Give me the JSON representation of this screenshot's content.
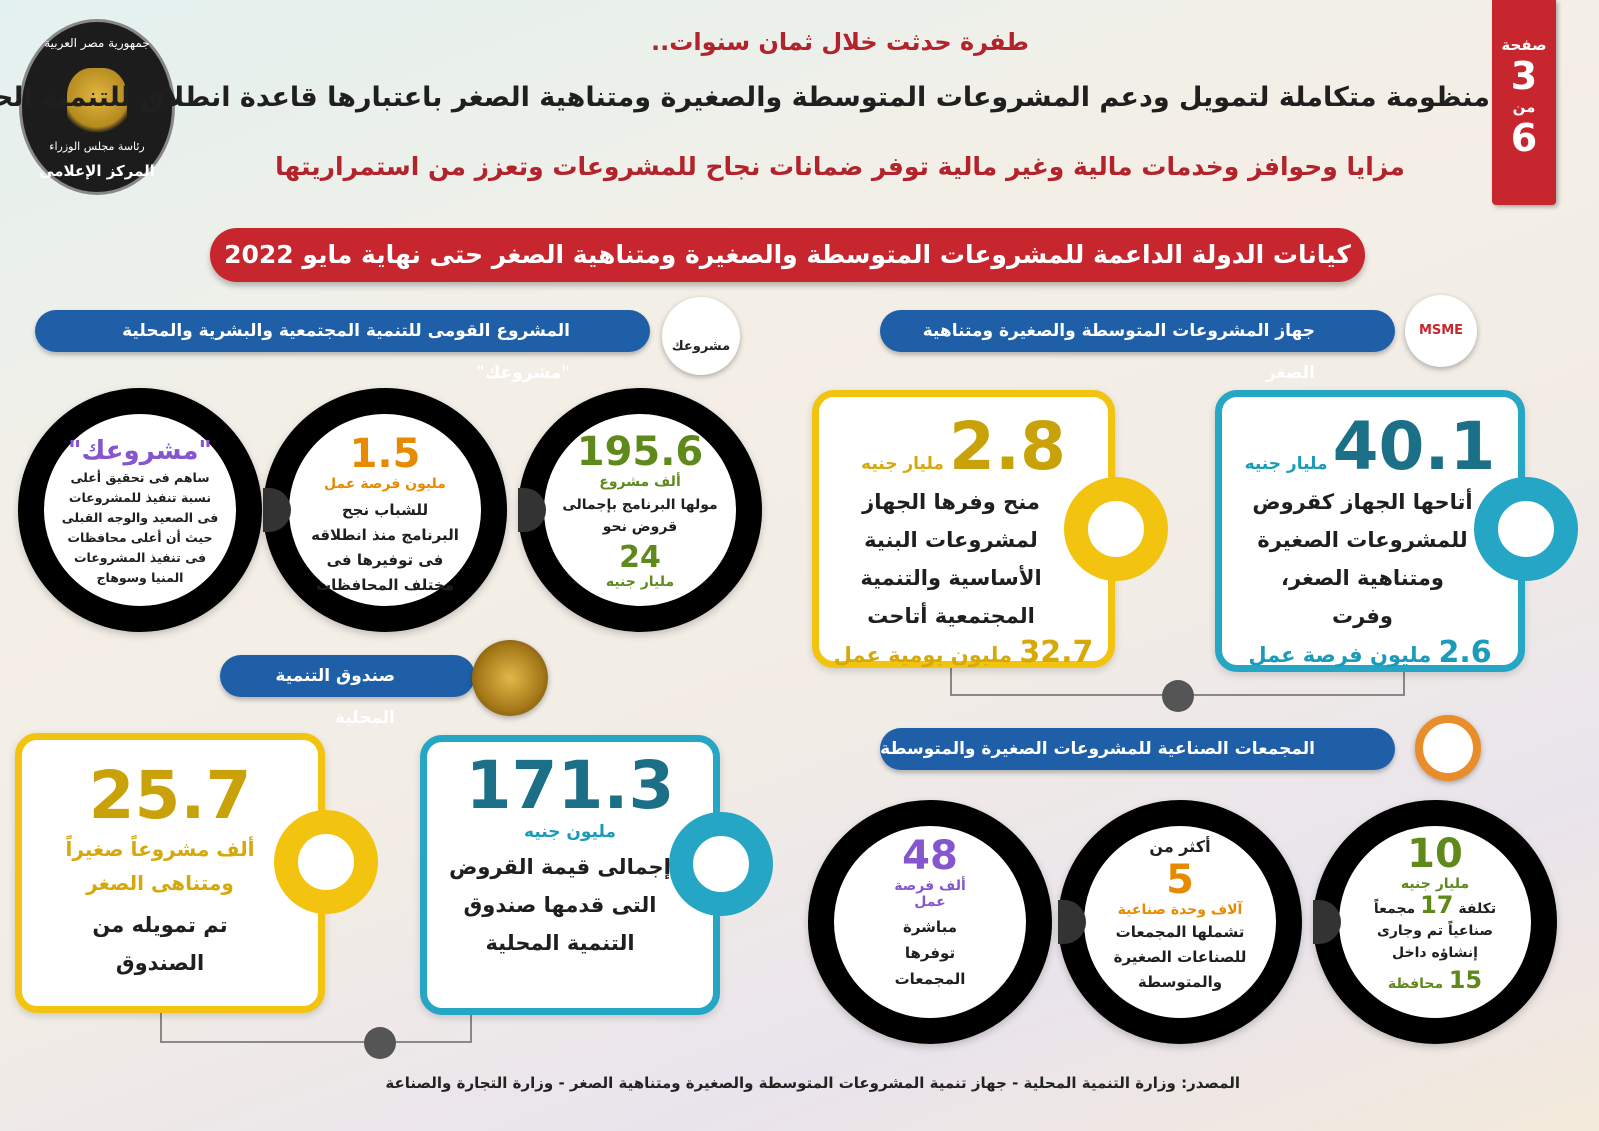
{
  "header": {
    "kicker": "طفرة حدثت خلال ثمان سنوات..",
    "title": "منظومة متكاملة لتمويل ودعم المشروعات المتوسطة والصغيرة ومتناهية الصغر باعتبارها قاعدة انطلاق للتنمية الحقيقية",
    "subtitle": "مزايا وحوافز وخدمات مالية وغير مالية توفر ضمانات نجاح للمشروعات وتعزز من استمراريتها"
  },
  "logo": {
    "top": "جمهورية مصر العربية",
    "middle": "رئاسة مجلس الوزراء",
    "bottom": "المركز الإعلامى"
  },
  "page_badge": {
    "page_label": "صفحة",
    "page": "3",
    "of_label": "من",
    "total": "6"
  },
  "banner": "كيانات الدولة الداعمة للمشروعات المتوسطة والصغيرة ومتناهية الصغر حتى نهاية مايو 2022",
  "msme": {
    "title": "جهاز المشروعات المتوسطة والصغيرة ومتناهية الصغر",
    "logo_text": "MSME",
    "cards": [
      {
        "value": "40.1",
        "unit": "مليار جنيه",
        "text": "أتاحها الجهاز كقروض للمشروعات الصغيرة ومتناهية الصغر، وفرت",
        "footer_value": "2.6",
        "footer_unit": "مليون فرصة عمل"
      },
      {
        "value": "2.8",
        "unit": "مليار جنيه",
        "text": "منح وفرها الجهاز لمشروعات البنية الأساسية والتنمية المجتمعية أتاحت",
        "footer_value": "32.7",
        "footer_unit": "مليون يومية عمل"
      }
    ]
  },
  "mashrouak": {
    "title": "المشروع القومى للتنمية المجتمعية والبشرية والمحلية \"مشروعك\"",
    "logo_text": "مشروعك",
    "circles": [
      {
        "value": "195.6",
        "unit": "ألف مشروع",
        "text": "مولها البرنامج بإجمالى قروض نحو",
        "value2": "24",
        "unit2": "مليار جنيه"
      },
      {
        "value": "1.5",
        "unit": "مليون فرصة عمل",
        "text": "للشباب نجح البرنامج منذ انطلاقه فى توفيرها فى مختلف المحافظات"
      },
      {
        "value": "\"مشروعك\"",
        "text": "ساهم فى تحقيق أعلى نسبة تنفيذ للمشروعات فى الصعيد والوجه القبلى حيث أن أعلى محافظات فى تنفيذ المشروعات المنيا وسوهاج"
      }
    ]
  },
  "fund": {
    "title": "صندوق التنمية المحلية",
    "cards": [
      {
        "value": "171.3",
        "unit": "مليون جنيه",
        "text": "إجمالى قيمة القروض التى قدمها صندوق التنمية المحلية"
      },
      {
        "value": "25.7",
        "unit": "ألف مشروعاً صغيراً ومتناهى الصغر",
        "text": "تم تمويله من الصندوق"
      }
    ]
  },
  "industrial": {
    "title": "المجمعات الصناعية للمشروعات الصغيرة والمتوسطة",
    "circles": [
      {
        "value": "10",
        "unit": "مليار جنيه",
        "prefix": "تكلفة",
        "value2": "17",
        "text": "مجمعاً صناعياً تم وجارى إنشاؤه داخل",
        "value3": "15",
        "unit3": "محافظة"
      },
      {
        "prefix": "أكثر من",
        "value": "5",
        "unit": "آلاف وحدة صناعية",
        "text": "تشملها المجمعات للصناعات الصغيرة والمتوسطة"
      },
      {
        "value": "48",
        "unit": "ألف فرصة عمل",
        "text": "مباشرة توفرها المجمعات"
      }
    ]
  },
  "source": "المصدر: وزارة التنمية المحلية - جهاز تنمية المشروعات المتوسطة والصغيرة ومتناهية الصغر - وزارة التجارة والصناعة"
}
